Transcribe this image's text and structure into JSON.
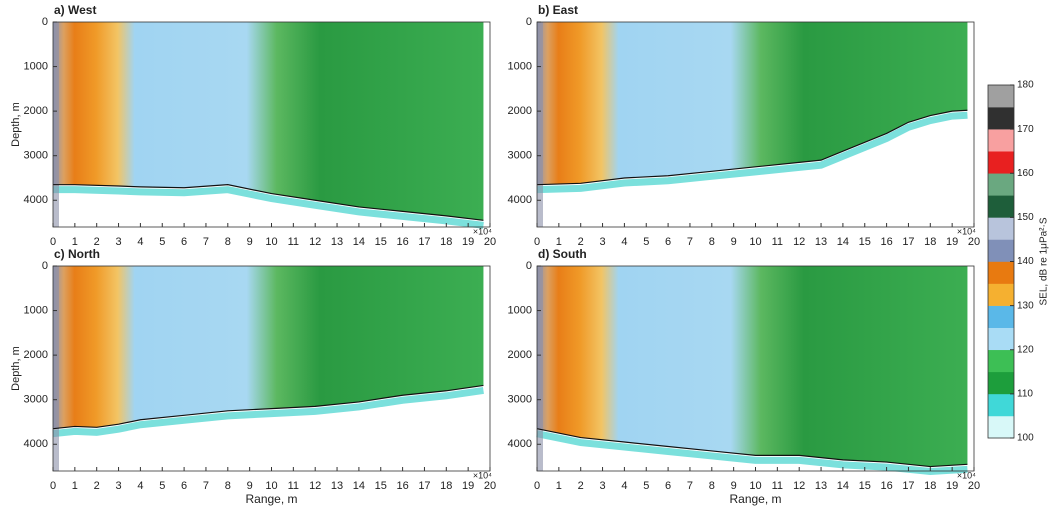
{
  "chart_data": [
    {
      "type": "field",
      "title": "a) West",
      "ylabel": "Depth, m",
      "x": [
        0,
        1,
        3,
        4,
        6,
        8,
        10,
        12,
        14,
        16,
        18,
        19.7
      ],
      "values": [
        3650,
        3650,
        3680,
        3700,
        3720,
        3650,
        3850,
        4000,
        4150,
        4250,
        4350,
        4450
      ],
      "xlim": [
        0,
        20
      ],
      "xticks": [
        0,
        1,
        2,
        3,
        4,
        5,
        6,
        7,
        8,
        9,
        10,
        11,
        12,
        13,
        14,
        15,
        16,
        17,
        18,
        19,
        20
      ],
      "x_exponent": "×10⁴",
      "ylim": [
        0,
        4600
      ],
      "yticks": [
        0,
        1000,
        2000,
        3000,
        4000
      ],
      "y_inverted": true
    },
    {
      "type": "field",
      "title": "b) East",
      "x": [
        0,
        2,
        4,
        6,
        8,
        10,
        12,
        13,
        14,
        15,
        16,
        17,
        18,
        19,
        19.7
      ],
      "values": [
        3650,
        3620,
        3500,
        3450,
        3350,
        3250,
        3150,
        3100,
        2900,
        2700,
        2500,
        2250,
        2100,
        2000,
        1980
      ],
      "xlim": [
        0,
        20
      ],
      "xticks": [
        0,
        1,
        2,
        3,
        4,
        5,
        6,
        7,
        8,
        9,
        10,
        11,
        12,
        13,
        14,
        15,
        16,
        17,
        18,
        19,
        20
      ],
      "x_exponent": "×10⁴",
      "ylim": [
        0,
        4600
      ],
      "yticks": [
        0,
        1000,
        2000,
        3000,
        4000
      ],
      "y_inverted": true
    },
    {
      "type": "field",
      "title": "c) North",
      "xlabel": "Range, m",
      "ylabel": "Depth, m",
      "x": [
        0,
        1,
        2,
        3,
        4,
        6,
        8,
        10,
        12,
        14,
        16,
        18,
        19.7
      ],
      "values": [
        3650,
        3600,
        3620,
        3550,
        3450,
        3350,
        3250,
        3200,
        3150,
        3050,
        2900,
        2800,
        2680
      ],
      "xlim": [
        0,
        20
      ],
      "xticks": [
        0,
        1,
        2,
        3,
        4,
        5,
        6,
        7,
        8,
        9,
        10,
        11,
        12,
        13,
        14,
        15,
        16,
        17,
        18,
        19,
        20
      ],
      "x_exponent": "×10⁴",
      "ylim": [
        0,
        4600
      ],
      "yticks": [
        0,
        1000,
        2000,
        3000,
        4000
      ],
      "y_inverted": true
    },
    {
      "type": "field",
      "title": "d) South",
      "xlabel": "Range, m",
      "x": [
        0,
        2,
        4,
        6,
        8,
        10,
        12,
        14,
        16,
        18,
        19.7
      ],
      "values": [
        3650,
        3850,
        3950,
        4050,
        4150,
        4250,
        4250,
        4350,
        4400,
        4500,
        4450
      ],
      "xlim": [
        0,
        20
      ],
      "xticks": [
        0,
        1,
        2,
        3,
        4,
        5,
        6,
        7,
        8,
        9,
        10,
        11,
        12,
        13,
        14,
        15,
        16,
        17,
        18,
        19,
        20
      ],
      "x_exponent": "×10⁴",
      "ylim": [
        0,
        4600
      ],
      "yticks": [
        0,
        1000,
        2000,
        3000,
        4000
      ],
      "y_inverted": true
    },
    {
      "type": "colorbar",
      "label": "SEL, dB re 1μPa²·S",
      "ylim": [
        100,
        180
      ],
      "yticks": [
        100,
        110,
        120,
        130,
        140,
        150,
        160,
        170,
        180
      ],
      "colors": [
        "#d8f8f8",
        "#40d8d8",
        "#1d9e3c",
        "#3dbf55",
        "#a9dcf5",
        "#5ab8e8",
        "#f5b030",
        "#e87a10",
        "#8090b8",
        "#b8c4dc",
        "#1e5e3a",
        "#6aa880",
        "#e82020",
        "#f8a0a0",
        "#303030",
        "#a0a0a0"
      ]
    }
  ]
}
